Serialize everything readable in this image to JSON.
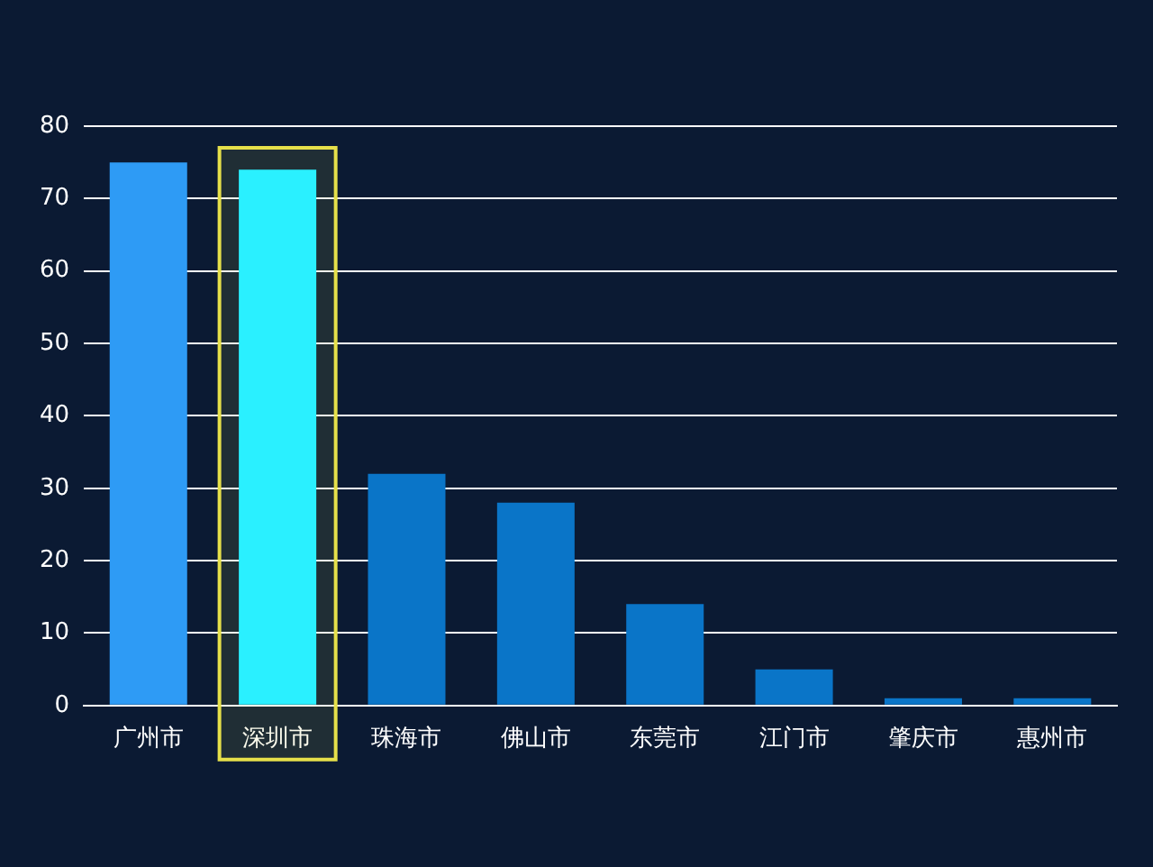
{
  "chart_data": {
    "type": "bar",
    "categories": [
      "广州市",
      "深圳市",
      "珠海市",
      "佛山市",
      "东莞市",
      "江门市",
      "肇庆市",
      "惠州市"
    ],
    "values": [
      75,
      74,
      32,
      28,
      14,
      5,
      1,
      1
    ],
    "colors": [
      "#2e9bf5",
      "#2af0ff",
      "#0a75c8",
      "#0a75c8",
      "#0a75c8",
      "#0a75c8",
      "#0a75c8",
      "#0a75c8"
    ],
    "ylim": [
      0,
      80
    ],
    "yticks": [
      0,
      10,
      20,
      30,
      40,
      50,
      60,
      70,
      80
    ],
    "grid": "y",
    "legend": false,
    "bands": [
      {
        "axis": "x",
        "from": "深圳市",
        "to": "深圳市",
        "color": "#e6e04a"
      }
    ]
  }
}
